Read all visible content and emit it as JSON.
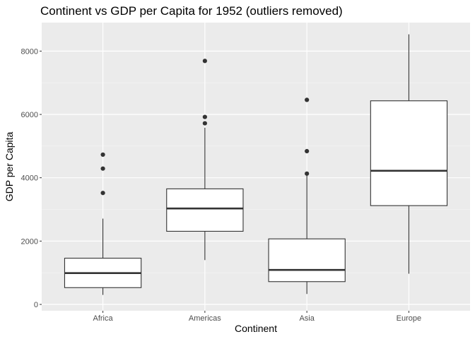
{
  "chart_data": {
    "type": "boxplot",
    "title": "Continent vs GDP per Capita for 1952 (outliers removed)",
    "xlabel": "Continent",
    "ylabel": "GDP per Capita",
    "ylim": [
      -200,
      8900
    ],
    "yticks": [
      0,
      2000,
      4000,
      6000,
      8000
    ],
    "grid": true,
    "categories": [
      "Africa",
      "Americas",
      "Asia",
      "Europe"
    ],
    "boxes": [
      {
        "category": "Africa",
        "whisker_low": 300,
        "q1": 530,
        "median": 990,
        "q3": 1460,
        "whisker_high": 2710,
        "outliers": [
          3520,
          4290,
          4730
        ]
      },
      {
        "category": "Americas",
        "whisker_low": 1400,
        "q1": 2310,
        "median": 3030,
        "q3": 3650,
        "whisker_high": 5580,
        "outliers": [
          5720,
          5920,
          7690
        ]
      },
      {
        "category": "Asia",
        "whisker_low": 330,
        "q1": 720,
        "median": 1090,
        "q3": 2070,
        "whisker_high": 4100,
        "outliers": [
          4130,
          4840,
          6460
        ]
      },
      {
        "category": "Europe",
        "whisker_low": 970,
        "q1": 3120,
        "median": 4220,
        "q3": 6430,
        "whisker_high": 8530,
        "outliers": []
      }
    ]
  }
}
